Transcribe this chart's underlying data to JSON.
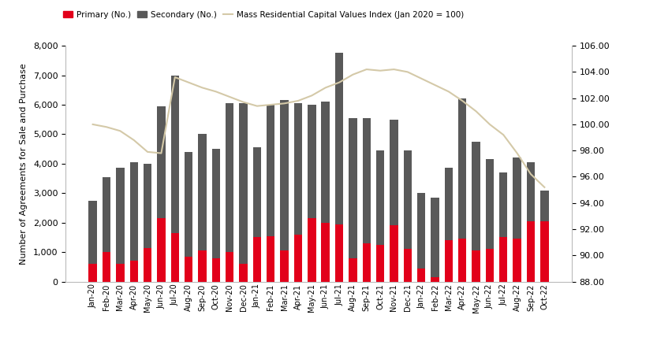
{
  "months": [
    "Jan-20",
    "Feb-20",
    "Mar-20",
    "Apr-20",
    "May-20",
    "Jun-20",
    "Jul-20",
    "Aug-20",
    "Sep-20",
    "Oct-20",
    "Nov-20",
    "Dec-20",
    "Jan-21",
    "Feb-21",
    "Mar-21",
    "Apr-21",
    "May-21",
    "Jun-21",
    "Jul-21",
    "Aug-21",
    "Sep-21",
    "Oct-21",
    "Nov-21",
    "Dec-21",
    "Jan-22",
    "Feb-22",
    "Mar-22",
    "Apr-22",
    "May-22",
    "Jun-22",
    "Jul-22",
    "Aug-22",
    "Sep-22",
    "Oct-22"
  ],
  "primary": [
    600,
    1000,
    600,
    700,
    1150,
    2150,
    1650,
    850,
    1050,
    800,
    1000,
    600,
    1500,
    1550,
    1050,
    1600,
    2150,
    2000,
    1950,
    800,
    1300,
    1250,
    1900,
    1100,
    450,
    150,
    1400,
    1450,
    1050,
    1100,
    1500,
    1450,
    2050,
    2050
  ],
  "secondary": [
    2150,
    2550,
    3250,
    3350,
    2850,
    3800,
    5350,
    3550,
    3950,
    3700,
    5050,
    5450,
    3050,
    4450,
    5100,
    4450,
    3850,
    4100,
    5800,
    4750,
    4250,
    3200,
    3600,
    3350,
    2550,
    2700,
    2450,
    4750,
    3700,
    3050,
    2200,
    2750,
    2000,
    1050
  ],
  "cv_index": [
    100.0,
    99.8,
    99.5,
    98.8,
    97.9,
    97.8,
    103.6,
    103.2,
    102.8,
    102.5,
    102.1,
    101.7,
    101.4,
    101.5,
    101.6,
    101.8,
    102.2,
    102.8,
    103.2,
    103.8,
    104.2,
    104.1,
    104.2,
    104.0,
    103.5,
    103.0,
    102.5,
    101.8,
    101.0,
    100.0,
    99.2,
    97.8,
    96.2,
    95.2
  ],
  "bar_color_primary": "#e2001a",
  "bar_color_secondary": "#595959",
  "line_color": "#d4c9a8",
  "ylabel_left": "Number of Agreements for Sale and Purchase",
  "ylabel_right": "Mass Residential Capital Values Index\n(Jan 2020 = 100)",
  "ylim_left": [
    0,
    8000
  ],
  "ylim_right": [
    88.0,
    106.0
  ],
  "yticks_left": [
    0,
    1000,
    2000,
    3000,
    4000,
    5000,
    6000,
    7000,
    8000
  ],
  "yticks_right": [
    88.0,
    90.0,
    92.0,
    94.0,
    96.0,
    98.0,
    100.0,
    102.0,
    104.0,
    106.0
  ],
  "legend_labels": [
    "Primary (No.)",
    "Secondary (No.)",
    "Mass Residential Capital Values Index (Jan 2020 = 100)"
  ],
  "background_color": "#ffffff"
}
